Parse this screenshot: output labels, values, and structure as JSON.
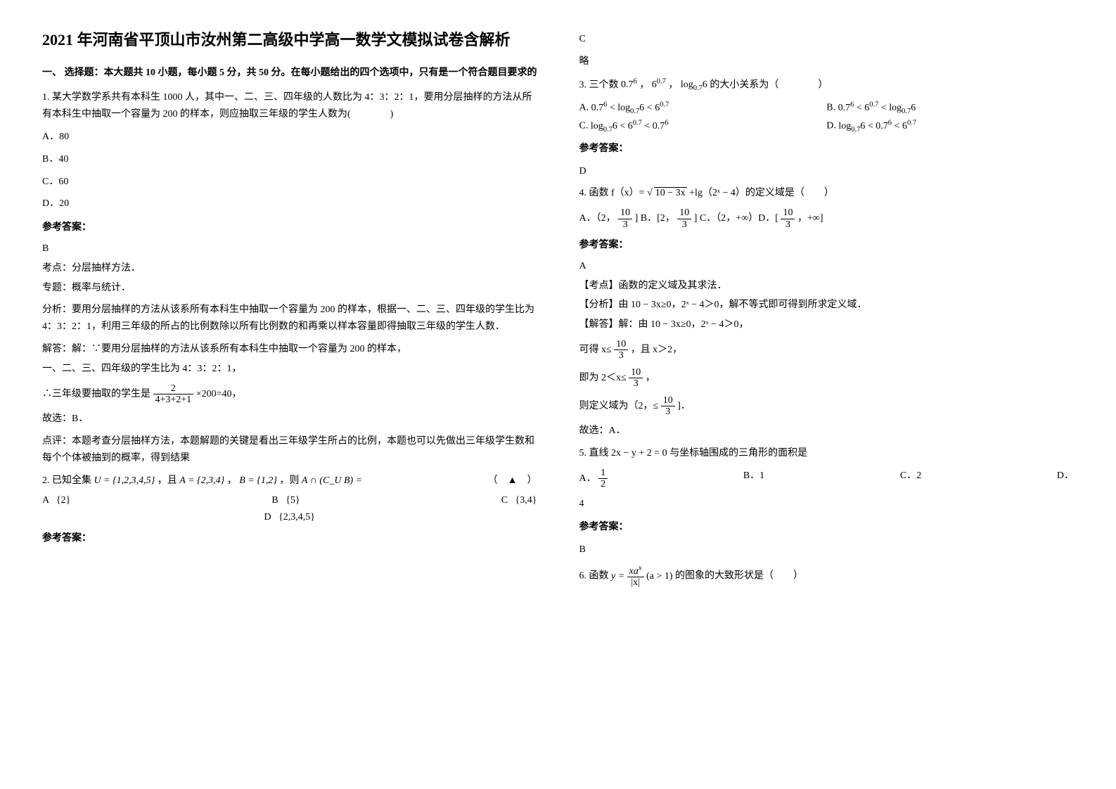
{
  "title": "2021 年河南省平顶山市汝州第二高级中学高一数学文模拟试卷含解析",
  "section1_head": "一、 选择题：本大题共 10 小题，每小题 5 分，共 50 分。在每小题给出的四个选项中，只有是一个符合题目要求的",
  "q1": {
    "stem": "1. 某大学数学系共有本科生 1000 人，其中一、二、三、四年级的人数比为 4：3：2：1，要用分层抽样的方法从所有本科生中抽取一个容量为 200 的样本，则应抽取三年级的学生人数为(　　　　)",
    "A": "A．80",
    "B": "B．40",
    "C": "C．60",
    "D": "D．20",
    "ans_label": "参考答案：",
    "ans": "B",
    "line1": "考点：分层抽样方法．",
    "line2": "专题：概率与统计．",
    "line3": "分析：要用分层抽样的方法从该系所有本科生中抽取一个容量为 200 的样本，根据一、二、三、四年级的学生比为 4：3：2：1，利用三年级的所占的比例数除以所有比例数的和再乘以样本容量即得抽取三年级的学生人数．",
    "line4": "解答：解：∵要用分层抽样的方法从该系所有本科生中抽取一个容量为 200 的样本，",
    "line5": "一、二、三、四年级的学生比为 4：3：2：1，",
    "line6a": "∴三年级要抽取的学生是 ",
    "frac_num": "2",
    "frac_den": "4+3+2+1",
    "line6b": " ×200=40，",
    "line7": "故选：B．",
    "line8": "点评：本题考查分层抽样方法，本题解题的关键是看出三年级学生所占的比例，本题也可以先做出三年级学生数和每个个体被抽到的概率，得到结果"
  },
  "q2": {
    "stem_a": "2. 已知全集 ",
    "U": "U = {1,2,3,4,5}",
    "stem_b": " ，且 ",
    "A": "A = {2,3,4}",
    "stem_c": " ， ",
    "B": "B = {1,2}",
    "stem_d": " ，则 ",
    "expr": "A ∩ (C_U B) =",
    "tail": "（　▲　）",
    "optA_l": "A",
    "optA": "{2}",
    "optB_l": "B",
    "optB": "{5}",
    "optC_l": "C",
    "optC": "{3,4}",
    "optD_l": "D",
    "optD": "{2,3,4,5}",
    "ans_label": "参考答案：",
    "ans": "C",
    "extra": "略"
  },
  "q3": {
    "stem_a": "3. 三个数 ",
    "n1": "0.7⁶",
    "sep1": " ， ",
    "n2": "6⁰·⁷",
    "sep2": " ， ",
    "n3_a": "log",
    "n3_b": "0.7",
    "n3_c": "6",
    "stem_b": " 的大小关系为（　　　　）",
    "A_l": "A.",
    "A": "0.7⁶ < log₀.₇6 < 6⁰·⁷",
    "B_l": "B.",
    "B": "0.7⁶ < 6⁰·⁷ < log₀.₇6",
    "C_l": "C.",
    "C": "log₀.₇6 < 6⁰·⁷ < 0.7⁶",
    "D_l": "D.",
    "D": "log₀.₇6 < 0.7⁶ < 6⁰·⁷",
    "ans_label": "参考答案：",
    "ans": "D"
  },
  "q4": {
    "stem_a": "4. 函数 f（x）=",
    "sqrt": "10 − 3x",
    "stem_b": "+lg（2ˣ − 4）的定义域是（　　）",
    "optline_a": "A．（2，",
    "frac_a_num": "10",
    "frac_a_den": "3",
    "optline_b": " ] B．[2，",
    "frac_b_num": "10",
    "frac_b_den": "3",
    "optline_c": " ] C．（2，+∞）D．[ ",
    "frac_c_num": "10",
    "frac_c_den": "3",
    "optline_d": " ，+∞]",
    "ans_label": "参考答案：",
    "ans": "A",
    "l1": "【考点】函数的定义域及其求法．",
    "l2": "【分析】由 10 − 3x≥0，2ˣ − 4＞0，解不等式即可得到所求定义域．",
    "l3": "【解答】解：由 10 − 3x≥0，2ˣ − 4＞0，",
    "l4a": "可得 x≤ ",
    "l4_num": "10",
    "l4_den": "3",
    "l4b": " ，且 x＞2，",
    "l5a": "即为 2＜x≤ ",
    "l5_num": "10",
    "l5_den": "3",
    "l5b": " ，",
    "l6a": "则定义域为（2，≤ ",
    "l6_num": "10",
    "l6_den": "3",
    "l6b": " ]．",
    "l7": "故选：A．"
  },
  "q5": {
    "stem_a": "5. 直线 ",
    "eq": "2x − y + 2 = 0",
    "stem_b": " 与坐标轴围成的三角形的面积是",
    "A_l": "A．",
    "A_num": "1",
    "A_den": "2",
    "B_l": "B．",
    "B": "1",
    "C_l": "C．",
    "C": "2",
    "D_l": "D．",
    "D": "4",
    "ans_label": "参考答案：",
    "ans": "B"
  },
  "q6": {
    "stem_a": "6. 函数 ",
    "y_a": "y = ",
    "y_num": "xaˣ",
    "y_den": "|x|",
    "y_b": "(a > 1)",
    "stem_b": " 的图象的大致形状是（　　）"
  }
}
